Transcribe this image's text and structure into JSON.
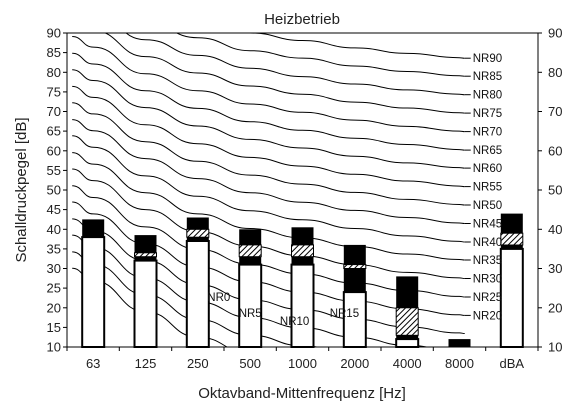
{
  "chart_data": {
    "type": "bar",
    "title": "Heizbetrieb",
    "xlabel": "Oktavband-Mittenfrequenz [Hz]",
    "ylabel": "Schalldruckpegel [dB]",
    "ylim": [
      10,
      90
    ],
    "yticks": [
      10,
      15,
      20,
      25,
      30,
      35,
      40,
      45,
      50,
      55,
      60,
      65,
      70,
      75,
      80,
      85,
      90
    ],
    "yticks_right": [
      10,
      20,
      30,
      40,
      50,
      60,
      70,
      80,
      90
    ],
    "categories": [
      "63",
      "125",
      "250",
      "500",
      "1000",
      "2000",
      "4000",
      "8000",
      "dBA"
    ],
    "series": [
      {
        "values": [
          38,
          32,
          37,
          31,
          31,
          24,
          12,
          10,
          35
        ]
      },
      {
        "values": [
          38,
          33,
          38,
          33,
          33,
          30,
          13,
          10,
          36
        ]
      },
      {
        "values": [
          38,
          34,
          40,
          36,
          36,
          31,
          20,
          10,
          39
        ]
      },
      {
        "values": [
          42.5,
          38.5,
          43,
          40,
          40.5,
          36,
          28,
          12,
          44
        ]
      }
    ],
    "nr_curves": [
      {
        "label": "NR90",
        "values": [
          103.4,
          96.8,
          93.2,
          90.0,
          88.1,
          86.2,
          84.8,
          83.7
        ],
        "show": true
      },
      {
        "label": "NR85",
        "values": [
          99.1,
          92.6,
          88.8,
          85.5,
          83.6,
          81.6,
          80.2,
          79.1
        ],
        "show": true
      },
      {
        "label": "NR80",
        "values": [
          94.9,
          88.3,
          84.3,
          81.0,
          78.9,
          77.0,
          75.5,
          74.4
        ],
        "show": true
      },
      {
        "label": "NR75",
        "values": [
          90.6,
          84.0,
          79.8,
          76.5,
          74.4,
          72.4,
          70.9,
          69.7
        ],
        "show": true
      },
      {
        "label": "NR70",
        "values": [
          86.4,
          79.6,
          75.3,
          71.9,
          69.8,
          67.8,
          66.2,
          65.0
        ],
        "show": true
      },
      {
        "label": "NR65",
        "values": [
          82.1,
          75.3,
          70.8,
          67.4,
          65.2,
          63.2,
          61.6,
          60.3
        ],
        "show": true
      },
      {
        "label": "NR60",
        "values": [
          77.9,
          71.0,
          66.3,
          62.9,
          60.7,
          58.6,
          56.9,
          55.7
        ],
        "show": true
      },
      {
        "label": "NR55",
        "values": [
          73.6,
          66.6,
          61.8,
          58.3,
          56.1,
          54.0,
          52.3,
          51.0
        ],
        "show": true
      },
      {
        "label": "NR50",
        "values": [
          69.4,
          62.3,
          57.3,
          53.8,
          51.5,
          49.4,
          47.6,
          46.3
        ],
        "show": true
      },
      {
        "label": "NR45",
        "values": [
          65.1,
          58.0,
          52.9,
          49.3,
          46.9,
          44.8,
          43.0,
          41.6
        ],
        "show": true
      },
      {
        "label": "NR40",
        "values": [
          60.9,
          53.6,
          48.4,
          44.7,
          42.4,
          40.2,
          38.3,
          36.9
        ],
        "show": true
      },
      {
        "label": "NR35",
        "values": [
          56.6,
          49.3,
          43.9,
          40.2,
          37.8,
          35.6,
          33.7,
          32.3
        ],
        "show": true
      },
      {
        "label": "NR30",
        "values": [
          52.4,
          45.0,
          39.4,
          35.7,
          33.2,
          31.0,
          29.0,
          27.6
        ],
        "show": true
      },
      {
        "label": "NR25",
        "values": [
          48.1,
          40.6,
          34.9,
          31.1,
          28.6,
          26.3,
          24.4,
          22.9
        ],
        "show": true
      },
      {
        "label": "NR20",
        "values": [
          43.9,
          36.3,
          30.4,
          26.6,
          24.0,
          21.7,
          19.7,
          18.2
        ],
        "show": true
      },
      {
        "label": "NR15",
        "values": [
          39.6,
          32.0,
          25.9,
          22.0,
          19.5,
          17.1,
          15.1,
          13.6
        ],
        "show": false
      },
      {
        "label": "NR10",
        "values": [
          35.4,
          27.6,
          21.5,
          17.5,
          14.9,
          12.5,
          10.4,
          8.9
        ],
        "show": false
      },
      {
        "label": "NR5",
        "values": [
          31.1,
          23.3,
          17.0,
          13.0,
          10.3,
          7.9,
          5.8,
          4.2
        ],
        "show": false
      },
      {
        "label": "NR0",
        "values": [
          26.9,
          19.0,
          12.5,
          8.4,
          5.7,
          3.3,
          1.1,
          -0.5
        ],
        "show": false
      }
    ],
    "inline_labels": [
      "NR0",
      "NR5",
      "NR10",
      "NR15"
    ],
    "grid": false
  }
}
